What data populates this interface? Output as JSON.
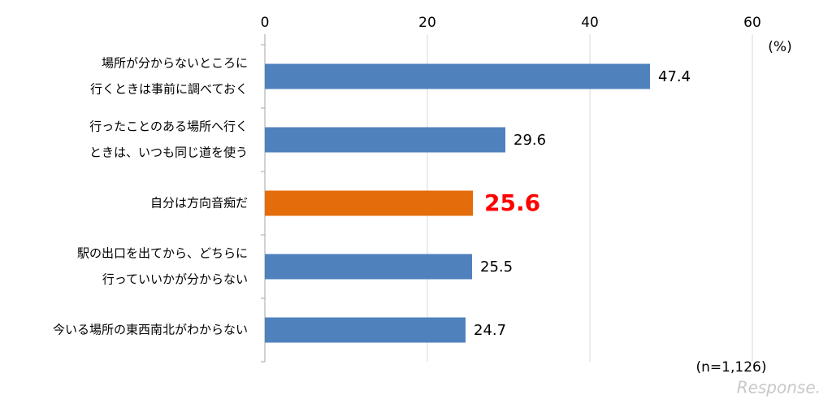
{
  "chart_data": {
    "type": "bar",
    "orientation": "horizontal",
    "categories": [
      [
        "場所が分からないところに",
        "行くときは事前に調べておく"
      ],
      [
        "行ったことのある場所へ行く",
        "ときは、いつも同じ道を使う"
      ],
      [
        "自分は方向音痴だ"
      ],
      [
        "駅の出口を出てから、どちらに",
        "行っていいかが分からない"
      ],
      [
        "今いる場所の東西南北がわからない"
      ]
    ],
    "values": [
      47.4,
      29.6,
      25.6,
      25.5,
      24.7
    ],
    "colors": [
      "#4f81bd",
      "#4f81bd",
      "#e46c0a",
      "#4f81bd",
      "#4f81bd"
    ],
    "value_label_colors": [
      "#000000",
      "#000000",
      "#ff0000",
      "#000000",
      "#000000"
    ],
    "xlim": [
      0,
      60
    ],
    "xticks": [
      0,
      20,
      40,
      60
    ],
    "grid": true,
    "unit_label": "(%)",
    "note": "(n=1,126)",
    "watermark": "Response."
  }
}
